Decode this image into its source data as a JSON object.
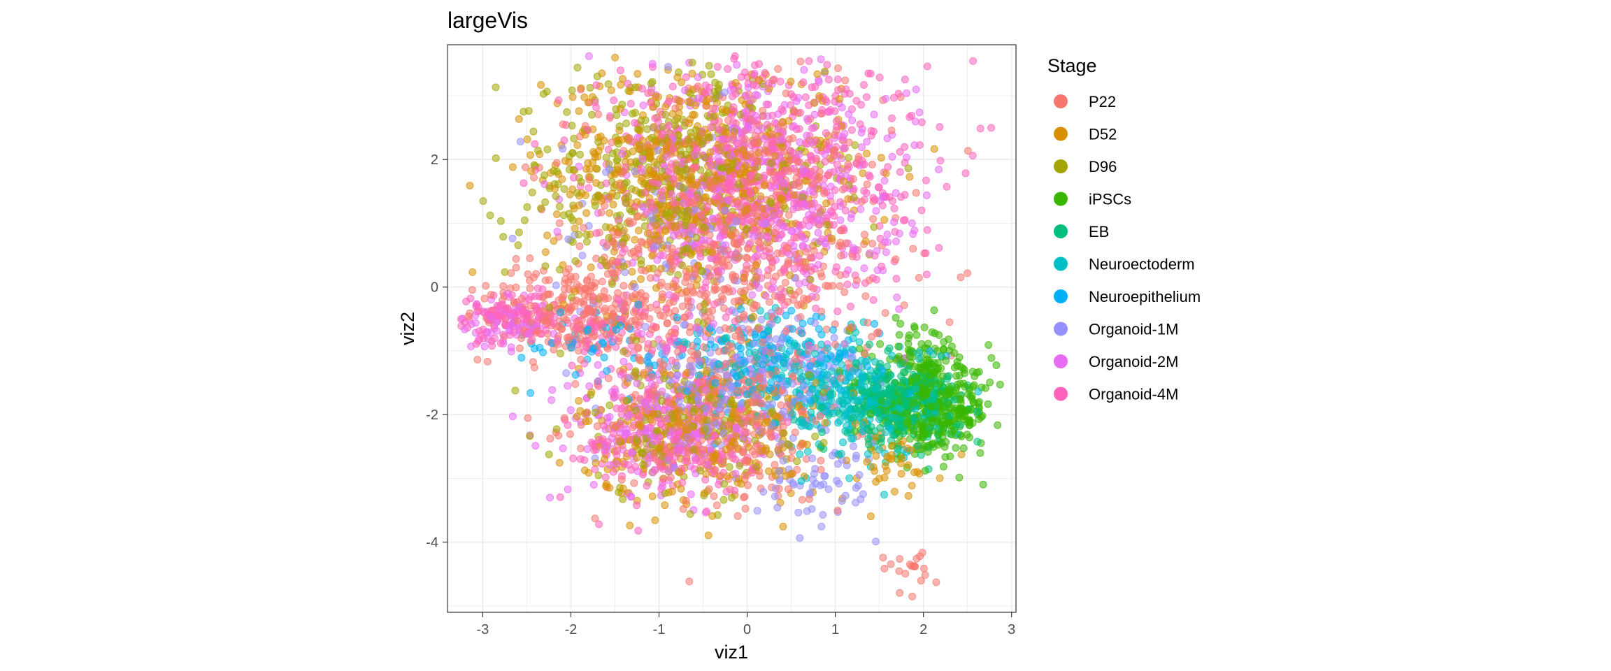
{
  "chart_data": {
    "type": "scatter",
    "title": "largeVis",
    "xlabel": "viz1",
    "ylabel": "viz2",
    "xlim": [
      -3.4,
      3.05
    ],
    "ylim": [
      -5.1,
      3.8
    ],
    "xticks": [
      -3,
      -2,
      -1,
      0,
      1,
      2,
      3
    ],
    "yticks": [
      -4,
      -2,
      0,
      2
    ],
    "grid": true,
    "legend": {
      "title": "Stage",
      "position": "right"
    },
    "point_alpha": 0.55,
    "series": [
      {
        "name": "P22",
        "color": "#F8766D",
        "clusters": [
          {
            "cx": -0.2,
            "cy": 0.4,
            "sx": 0.9,
            "sy": 1.3,
            "n": 700
          },
          {
            "cx": -2.0,
            "cy": -0.4,
            "sx": 0.6,
            "sy": 0.35,
            "n": 250
          },
          {
            "cx": -0.3,
            "cy": -2.2,
            "sx": 0.7,
            "sy": 0.6,
            "n": 250
          },
          {
            "cx": 1.9,
            "cy": -4.4,
            "sx": 0.2,
            "sy": 0.2,
            "n": 20
          }
        ]
      },
      {
        "name": "D52",
        "color": "#D89000",
        "clusters": [
          {
            "cx": -0.6,
            "cy": 1.8,
            "sx": 0.85,
            "sy": 0.85,
            "n": 550
          },
          {
            "cx": -0.5,
            "cy": -2.3,
            "sx": 0.7,
            "sy": 0.55,
            "n": 280
          },
          {
            "cx": 1.6,
            "cy": -2.8,
            "sx": 0.3,
            "sy": 0.3,
            "n": 40
          }
        ]
      },
      {
        "name": "D96",
        "color": "#A3A500",
        "clusters": [
          {
            "cx": -0.9,
            "cy": 1.7,
            "sx": 0.9,
            "sy": 0.9,
            "n": 420
          },
          {
            "cx": -0.7,
            "cy": -2.1,
            "sx": 0.7,
            "sy": 0.6,
            "n": 170
          }
        ]
      },
      {
        "name": "iPSCs",
        "color": "#39B600",
        "clusters": [
          {
            "cx": 2.1,
            "cy": -1.9,
            "sx": 0.35,
            "sy": 0.35,
            "n": 420
          },
          {
            "cx": 1.9,
            "cy": -1.0,
            "sx": 0.25,
            "sy": 0.25,
            "n": 60
          }
        ]
      },
      {
        "name": "EB",
        "color": "#00BF7D",
        "clusters": [
          {
            "cx": 1.7,
            "cy": -1.8,
            "sx": 0.35,
            "sy": 0.3,
            "n": 280
          }
        ]
      },
      {
        "name": "Neuroectoderm",
        "color": "#00BFC4",
        "clusters": [
          {
            "cx": 1.25,
            "cy": -1.8,
            "sx": 0.45,
            "sy": 0.45,
            "n": 280
          },
          {
            "cx": 0.3,
            "cy": -1.2,
            "sx": 0.5,
            "sy": 0.4,
            "n": 100
          }
        ]
      },
      {
        "name": "Neuroepithelium",
        "color": "#00B0F6",
        "clusters": [
          {
            "cx": 0.3,
            "cy": -1.2,
            "sx": 0.6,
            "sy": 0.35,
            "n": 130
          },
          {
            "cx": -1.7,
            "cy": -0.9,
            "sx": 0.6,
            "sy": 0.3,
            "n": 50
          }
        ]
      },
      {
        "name": "Organoid-1M",
        "color": "#9590FF",
        "clusters": [
          {
            "cx": 0.1,
            "cy": -1.5,
            "sx": 0.7,
            "sy": 0.6,
            "n": 220
          },
          {
            "cx": -0.8,
            "cy": 1.0,
            "sx": 0.7,
            "sy": 0.8,
            "n": 100
          },
          {
            "cx": 0.9,
            "cy": -3.1,
            "sx": 0.35,
            "sy": 0.3,
            "n": 50
          }
        ]
      },
      {
        "name": "Organoid-2M",
        "color": "#E76BF3",
        "clusters": [
          {
            "cx": 0.2,
            "cy": 1.6,
            "sx": 0.8,
            "sy": 1.0,
            "n": 450
          },
          {
            "cx": -0.9,
            "cy": -2.2,
            "sx": 0.55,
            "sy": 0.55,
            "n": 220
          },
          {
            "cx": -2.7,
            "cy": -0.55,
            "sx": 0.3,
            "sy": 0.2,
            "n": 60
          }
        ]
      },
      {
        "name": "Organoid-4M",
        "color": "#FF62BC",
        "clusters": [
          {
            "cx": 0.1,
            "cy": 1.8,
            "sx": 0.9,
            "sy": 0.95,
            "n": 650
          },
          {
            "cx": -2.8,
            "cy": -0.5,
            "sx": 0.3,
            "sy": 0.2,
            "n": 110
          },
          {
            "cx": -0.8,
            "cy": -2.3,
            "sx": 0.6,
            "sy": 0.55,
            "n": 200
          },
          {
            "cx": -1.5,
            "cy": -0.7,
            "sx": 0.5,
            "sy": 0.3,
            "n": 80
          }
        ]
      }
    ]
  }
}
